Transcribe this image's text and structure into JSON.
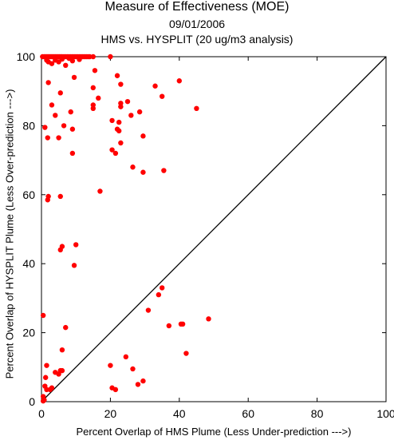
{
  "chart_data": {
    "type": "scatter",
    "title": "Measure of Effectiveness (MOE)",
    "subtitle": "09/01/2006",
    "subtitle2": "HMS vs. HYSPLIT  (20 ug/m3 analysis)",
    "xlabel": "Percent Overlap of HMS Plume (Less Under-prediction --->)",
    "ylabel": "Percent Overlap of HYSPLIT Plume (Less Over-prediction --->)",
    "xlim": [
      0,
      100
    ],
    "ylim": [
      0,
      100
    ],
    "x_ticks": [
      "0",
      "20",
      "40",
      "60",
      "80",
      "100"
    ],
    "y_ticks": [
      "0",
      "20",
      "40",
      "60",
      "80",
      "100"
    ],
    "grid": false,
    "reference_line": "y = x",
    "marker_color": "#ff0000",
    "line_color": "#000000",
    "series": [
      {
        "points": [
          [
            0.3,
            100
          ],
          [
            0.8,
            100
          ],
          [
            1.2,
            100
          ],
          [
            1.6,
            100
          ],
          [
            2.0,
            100
          ],
          [
            2.4,
            100
          ],
          [
            2.8,
            100
          ],
          [
            3.2,
            100
          ],
          [
            3.6,
            100
          ],
          [
            4.0,
            100
          ],
          [
            4.4,
            100
          ],
          [
            4.8,
            100
          ],
          [
            5.2,
            100
          ],
          [
            5.6,
            100
          ],
          [
            6.0,
            100
          ],
          [
            6.5,
            100
          ],
          [
            7.0,
            100
          ],
          [
            7.5,
            100
          ],
          [
            8.0,
            100
          ],
          [
            8.5,
            100
          ],
          [
            9.0,
            100
          ],
          [
            9.5,
            100
          ],
          [
            10.0,
            100
          ],
          [
            10.5,
            100
          ],
          [
            11.0,
            100
          ],
          [
            11.5,
            100
          ],
          [
            12.0,
            100
          ],
          [
            12.5,
            100
          ],
          [
            13.0,
            100
          ],
          [
            13.5,
            100
          ],
          [
            14.0,
            100
          ],
          [
            15.0,
            100
          ],
          [
            20.0,
            100
          ],
          [
            1.5,
            99.0
          ],
          [
            2.0,
            98.5
          ],
          [
            3.0,
            98.0
          ],
          [
            4.0,
            99.0
          ],
          [
            5.0,
            98.5
          ],
          [
            6.0,
            99.3
          ],
          [
            7.0,
            97.5
          ],
          [
            8.0,
            99.5
          ],
          [
            9.0,
            98.8
          ],
          [
            11.0,
            99.2
          ],
          [
            2.0,
            92.5
          ],
          [
            3.0,
            86.0
          ],
          [
            4.0,
            83.0
          ],
          [
            5.5,
            89.5
          ],
          [
            6.5,
            80.0
          ],
          [
            8.5,
            84.0
          ],
          [
            9.5,
            94.0
          ],
          [
            9.0,
            79.0
          ],
          [
            5.0,
            76.5
          ],
          [
            1.0,
            79.5
          ],
          [
            1.8,
            76.5
          ],
          [
            9.0,
            72.0
          ],
          [
            15.0,
            91.0
          ],
          [
            15.5,
            96.0
          ],
          [
            15.0,
            86.0
          ],
          [
            15.0,
            85.0
          ],
          [
            16.5,
            88.0
          ],
          [
            20.5,
            81.5
          ],
          [
            22.0,
            94.5
          ],
          [
            23.0,
            92.0
          ],
          [
            22.5,
            81.0
          ],
          [
            23.0,
            86.5
          ],
          [
            23.0,
            85.5
          ],
          [
            22.0,
            79.0
          ],
          [
            22.5,
            78.5
          ],
          [
            25.0,
            87.0
          ],
          [
            26.0,
            83.0
          ],
          [
            20.5,
            73.0
          ],
          [
            21.5,
            72.0
          ],
          [
            23.0,
            75.0
          ],
          [
            28.5,
            84.0
          ],
          [
            29.5,
            77.0
          ],
          [
            26.5,
            68.0
          ],
          [
            29.5,
            66.5
          ],
          [
            33.0,
            91.5
          ],
          [
            35.0,
            88.5
          ],
          [
            40.0,
            93.0
          ],
          [
            45.0,
            85.0
          ],
          [
            35.5,
            67.0
          ],
          [
            17.0,
            61.0
          ],
          [
            2.0,
            59.5
          ],
          [
            1.8,
            58.5
          ],
          [
            5.5,
            59.5
          ],
          [
            5.5,
            44.0
          ],
          [
            6.0,
            45.0
          ],
          [
            10.0,
            45.5
          ],
          [
            9.5,
            39.5
          ],
          [
            0.5,
            25.0
          ],
          [
            7.0,
            21.5
          ],
          [
            31.0,
            26.5
          ],
          [
            34.0,
            31.0
          ],
          [
            35.0,
            33.0
          ],
          [
            37.0,
            22.0
          ],
          [
            40.5,
            22.5
          ],
          [
            41.0,
            22.5
          ],
          [
            48.5,
            24.0
          ],
          [
            42.0,
            14.0
          ],
          [
            1.5,
            10.5
          ],
          [
            4.0,
            8.5
          ],
          [
            5.0,
            8.0
          ],
          [
            5.5,
            9.0
          ],
          [
            6.0,
            9.0
          ],
          [
            6.0,
            15.0
          ],
          [
            20.0,
            10.5
          ],
          [
            24.5,
            13.0
          ],
          [
            1.0,
            4.5
          ],
          [
            1.5,
            3.5
          ],
          [
            2.5,
            3.5
          ],
          [
            3.0,
            4.0
          ],
          [
            20.5,
            4.0
          ],
          [
            21.5,
            3.5
          ],
          [
            26.5,
            9.5
          ],
          [
            28.0,
            5.0
          ],
          [
            29.5,
            6.0
          ],
          [
            0.5,
            1.5
          ],
          [
            0.8,
            0.5
          ],
          [
            1.2,
            7.0
          ],
          [
            0.5,
            0.2
          ]
        ]
      }
    ]
  }
}
